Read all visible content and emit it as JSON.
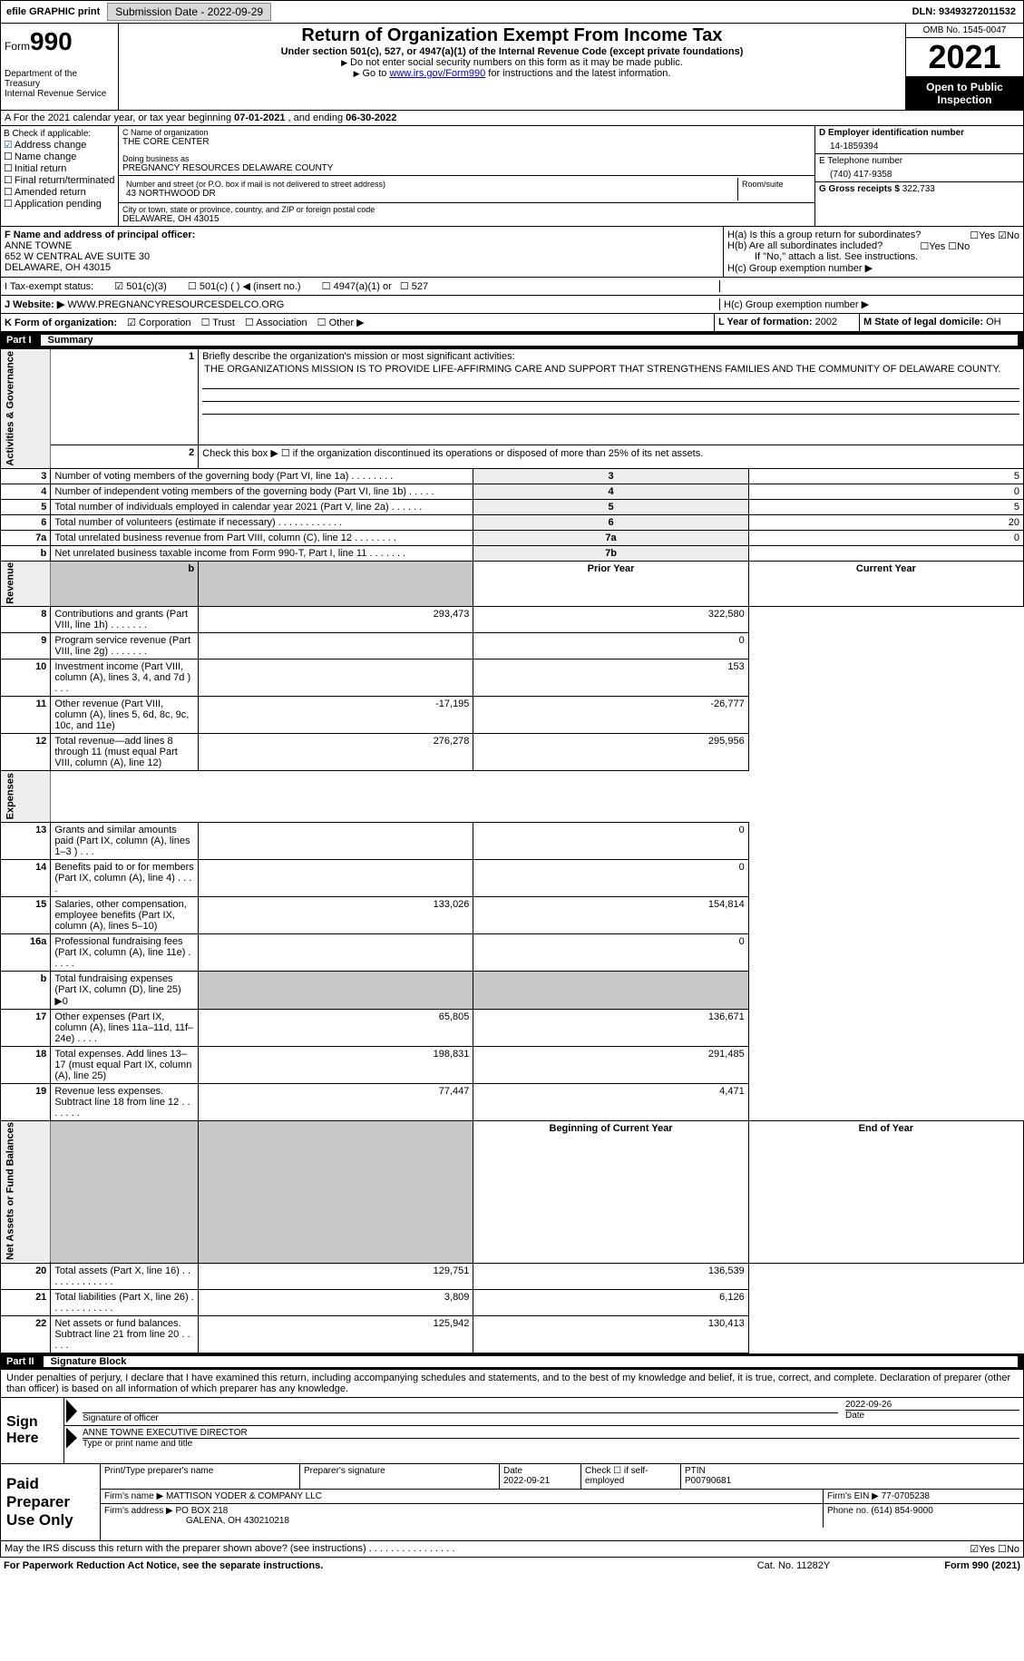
{
  "topbar": {
    "efile": "efile GRAPHIC print",
    "submission": "Submission Date - 2022-09-29",
    "dln_label": "DLN:",
    "dln": "93493272011532"
  },
  "header": {
    "form_word": "Form",
    "form_num": "990",
    "title": "Return of Organization Exempt From Income Tax",
    "subtitle": "Under section 501(c), 527, or 4947(a)(1) of the Internal Revenue Code (except private foundations)",
    "note1": "Do not enter social security numbers on this form as it may be made public.",
    "note2_pre": "Go to ",
    "note2_link": "www.irs.gov/Form990",
    "note2_post": " for instructions and the latest information.",
    "dept": "Department of the Treasury\nInternal Revenue Service",
    "omb": "OMB No. 1545-0047",
    "year": "2021",
    "open": "Open to Public Inspection"
  },
  "row_a": {
    "text_pre": "A For the 2021 calendar year, or tax year beginning ",
    "begin": "07-01-2021",
    "mid": " , and ending ",
    "end": "06-30-2022"
  },
  "col_b": {
    "title": "B Check if applicable:",
    "items": [
      {
        "label": "Address change",
        "checked": true
      },
      {
        "label": "Name change",
        "checked": false
      },
      {
        "label": "Initial return",
        "checked": false
      },
      {
        "label": "Final return/terminated",
        "checked": false
      },
      {
        "label": "Amended return",
        "checked": false
      },
      {
        "label": "Application pending",
        "checked": false
      }
    ]
  },
  "col_c": {
    "name_label": "C Name of organization",
    "name": "THE CORE CENTER",
    "dba_label": "Doing business as",
    "dba": "PREGNANCY RESOURCES DELAWARE COUNTY",
    "street_label": "Number and street (or P.O. box if mail is not delivered to street address)",
    "room_label": "Room/suite",
    "street": "43 NORTHWOOD DR",
    "city_label": "City or town, state or province, country, and ZIP or foreign postal code",
    "city": "DELAWARE, OH  43015"
  },
  "col_d": {
    "ein_label": "D Employer identification number",
    "ein": "14-1859394",
    "phone_label": "E Telephone number",
    "phone": "(740) 417-9358",
    "receipts_label": "G Gross receipts $",
    "receipts": "322,733"
  },
  "mid": {
    "f_label": "F Name and address of principal officer:",
    "f_name": "ANNE TOWNE",
    "f_addr1": "652 W CENTRAL AVE SUITE 30",
    "f_addr2": "DELAWARE, OH  43015",
    "ha": "H(a)  Is this a group return for subordinates?",
    "hb": "H(b)  Are all subordinates included?",
    "hb_note": "If \"No,\" attach a list. See instructions.",
    "hc": "H(c)  Group exemption number ▶",
    "tax_label": "I   Tax-exempt status:",
    "tax_501c3": "501(c)(3)",
    "tax_501c": "501(c) (  ) ◀ (insert no.)",
    "tax_4947": "4947(a)(1) or",
    "tax_527": "527",
    "website_label": "J   Website: ▶",
    "website": "WWW.PREGNANCYRESOURCESDELCO.ORG"
  },
  "row_k": {
    "k_label": "K Form of organization:",
    "k_corp": "Corporation",
    "k_trust": "Trust",
    "k_assoc": "Association",
    "k_other": "Other ▶",
    "l_label": "L Year of formation:",
    "l_val": "2002",
    "m_label": "M State of legal domicile:",
    "m_val": "OH"
  },
  "part1": {
    "label": "Part I",
    "title": "Summary",
    "q1": "Briefly describe the organization's mission or most significant activities:",
    "mission": "THE ORGANIZATIONS MISSION IS TO PROVIDE LIFE-AFFIRMING CARE AND SUPPORT THAT STRENGTHENS FAMILIES AND THE COMMUNITY OF DELAWARE COUNTY.",
    "q2": "Check this box ▶ ☐  if the organization discontinued its operations or disposed of more than 25% of its net assets.",
    "sections": {
      "governance": "Activities & Governance",
      "revenue": "Revenue",
      "expenses": "Expenses",
      "netassets": "Net Assets or Fund Balances"
    },
    "rows_gov": [
      {
        "n": "3",
        "d": "Number of voting members of the governing body (Part VI, line 1a)   .    .    .    .    .    .    .    .",
        "b": "3",
        "v": "5"
      },
      {
        "n": "4",
        "d": "Number of independent voting members of the governing body (Part VI, line 1b)   .    .    .    .    .",
        "b": "4",
        "v": "0"
      },
      {
        "n": "5",
        "d": "Total number of individuals employed in calendar year 2021 (Part V, line 2a)   .    .    .    .    .    .",
        "b": "5",
        "v": "5"
      },
      {
        "n": "6",
        "d": "Total number of volunteers (estimate if necessary)    .    .    .    .    .    .    .    .    .    .    .    .",
        "b": "6",
        "v": "20"
      },
      {
        "n": "7a",
        "d": "Total unrelated business revenue from Part VIII, column (C), line 12   .    .    .    .    .    .    .    .",
        "b": "7a",
        "v": "0"
      },
      {
        "n": "b",
        "d": "Net unrelated business taxable income from Form 990-T, Part I, line 11   .    .    .    .    .    .    .",
        "b": "7b",
        "v": ""
      }
    ],
    "hdr_prior": "Prior Year",
    "hdr_current": "Current Year",
    "rows_rev": [
      {
        "n": "8",
        "d": "Contributions and grants (Part VIII, line 1h)   .    .    .    .    .    .    .",
        "p": "293,473",
        "c": "322,580"
      },
      {
        "n": "9",
        "d": "Program service revenue (Part VIII, line 2g)   .    .    .    .    .    .    .",
        "p": "",
        "c": "0"
      },
      {
        "n": "10",
        "d": "Investment income (Part VIII, column (A), lines 3, 4, and 7d )    .    .    .",
        "p": "",
        "c": "153"
      },
      {
        "n": "11",
        "d": "Other revenue (Part VIII, column (A), lines 5, 6d, 8c, 9c, 10c, and 11e)",
        "p": "-17,195",
        "c": "-26,777"
      },
      {
        "n": "12",
        "d": "Total revenue—add lines 8 through 11 (must equal Part VIII, column (A), line 12)",
        "p": "276,278",
        "c": "295,956"
      }
    ],
    "rows_exp": [
      {
        "n": "13",
        "d": "Grants and similar amounts paid (Part IX, column (A), lines 1–3 )   .    .    .",
        "p": "",
        "c": "0"
      },
      {
        "n": "14",
        "d": "Benefits paid to or for members (Part IX, column (A), line 4)    .    .    .    .",
        "p": "",
        "c": "0"
      },
      {
        "n": "15",
        "d": "Salaries, other compensation, employee benefits (Part IX, column (A), lines 5–10)",
        "p": "133,026",
        "c": "154,814"
      },
      {
        "n": "16a",
        "d": "Professional fundraising fees (Part IX, column (A), line 11e)   .    .    .    .    .",
        "p": "",
        "c": "0"
      },
      {
        "n": "b",
        "d": "Total fundraising expenses (Part IX, column (D), line 25) ▶0",
        "p": "shade",
        "c": "shade"
      },
      {
        "n": "17",
        "d": "Other expenses (Part IX, column (A), lines 11a–11d, 11f–24e)    .    .    .    .",
        "p": "65,805",
        "c": "136,671"
      },
      {
        "n": "18",
        "d": "Total expenses. Add lines 13–17 (must equal Part IX, column (A), line 25)",
        "p": "198,831",
        "c": "291,485"
      },
      {
        "n": "19",
        "d": "Revenue less expenses. Subtract line 18 from line 12   .    .    .    .    .    .    .",
        "p": "77,447",
        "c": "4,471"
      }
    ],
    "hdr_begin": "Beginning of Current Year",
    "hdr_end": "End of Year",
    "rows_net": [
      {
        "n": "20",
        "d": "Total assets (Part X, line 16)   .    .    .    .    .    .    .    .    .    .    .    .    .",
        "p": "129,751",
        "c": "136,539"
      },
      {
        "n": "21",
        "d": "Total liabilities (Part X, line 26)   .    .    .    .    .    .    .    .    .    .    .    .",
        "p": "3,809",
        "c": "6,126"
      },
      {
        "n": "22",
        "d": "Net assets or fund balances. Subtract line 21 from line 20    .    .    .    .    .",
        "p": "125,942",
        "c": "130,413"
      }
    ]
  },
  "part2": {
    "label": "Part II",
    "title": "Signature Block",
    "penalties": "Under penalties of perjury, I declare that I have examined this return, including accompanying schedules and statements, and to the best of my knowledge and belief, it is true, correct, and complete. Declaration of preparer (other than officer) is based on all information of which preparer has any knowledge.",
    "sign_here": "Sign Here",
    "sig_date": "2022-09-26",
    "sig_officer": "Signature of officer",
    "sig_date_label": "Date",
    "sig_name": "ANNE TOWNE  EXECUTIVE DIRECTOR",
    "sig_name_label": "Type or print name and title",
    "prep_label": "Paid Preparer Use Only",
    "prep_name_label": "Print/Type preparer's name",
    "prep_sig_label": "Preparer's signature",
    "prep_date_label": "Date",
    "prep_date": "2022-09-21",
    "prep_check": "Check ☐ if self-employed",
    "prep_ptin_label": "PTIN",
    "prep_ptin": "P00790681",
    "firm_name_label": "Firm's name     ▶",
    "firm_name": "MATTISON YODER & COMPANY LLC",
    "firm_ein_label": "Firm's EIN ▶",
    "firm_ein": "77-0705238",
    "firm_addr_label": "Firm's address ▶",
    "firm_addr1": "PO BOX 218",
    "firm_addr2": "GALENA, OH  430210218",
    "firm_phone_label": "Phone no.",
    "firm_phone": "(614) 854-9000"
  },
  "footer": {
    "discuss": "May the IRS discuss this return with the preparer shown above? (see instructions)   .    .    .    .    .    .    .    .    .    .    .    .    .    .    .    .",
    "yes": "Yes",
    "no": "No",
    "paperwork": "For Paperwork Reduction Act Notice, see the separate instructions.",
    "cat": "Cat. No. 11282Y",
    "formref": "Form 990 (2021)"
  }
}
